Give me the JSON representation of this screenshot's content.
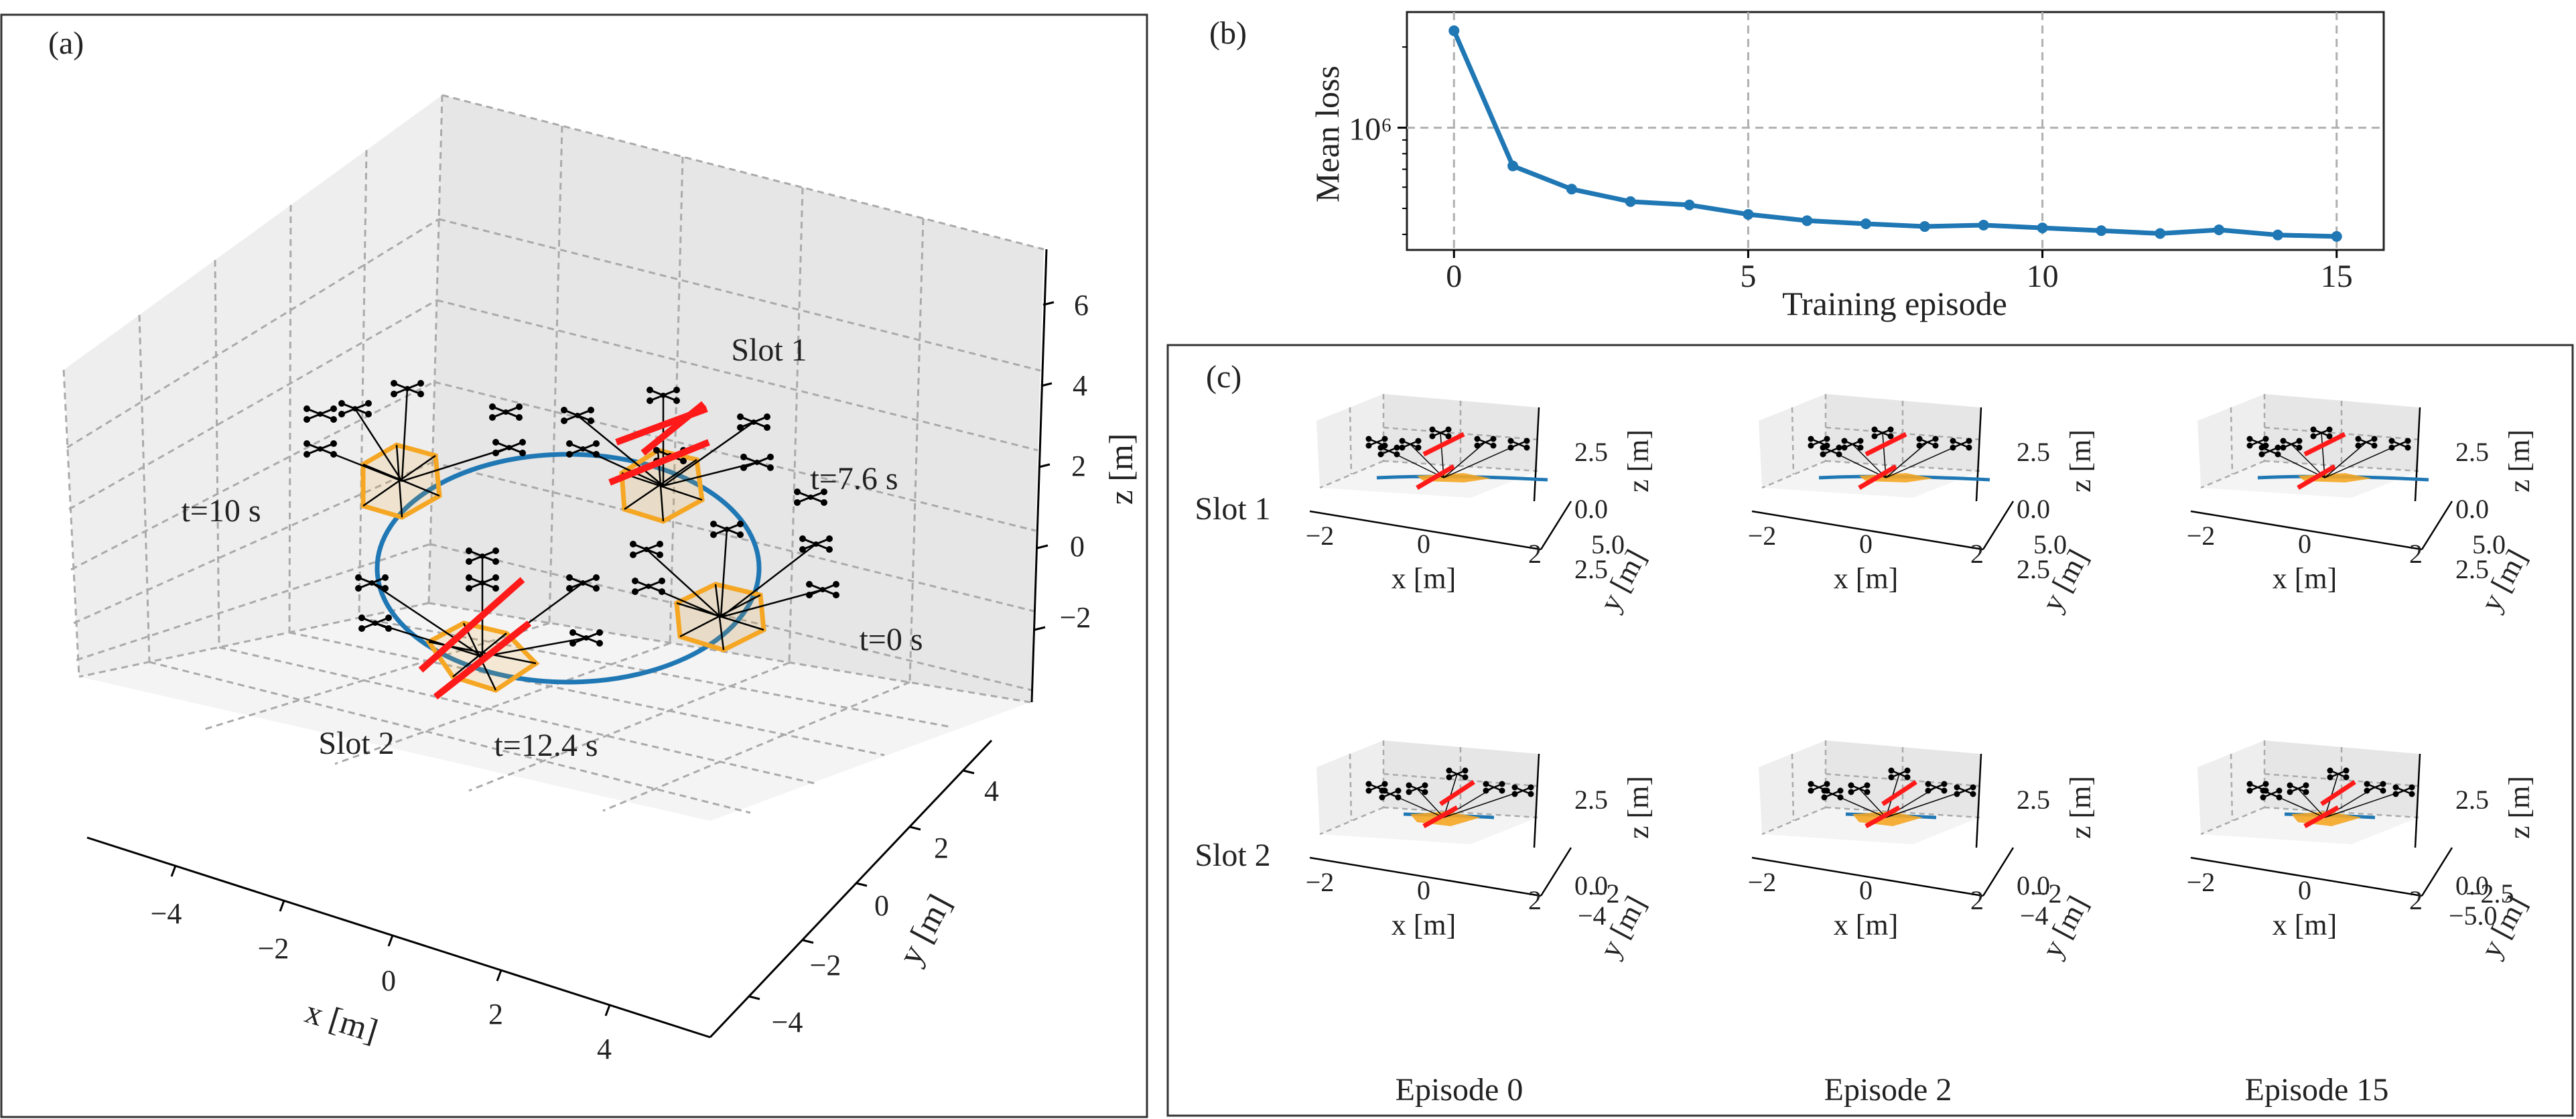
{
  "colors": {
    "trajectory": "#1f77b4",
    "payload": "#f5a623",
    "cut": "#ff1a1a",
    "quad": "#000000",
    "pane": "#f2f2f2",
    "grid": "#aaaaaa"
  },
  "panel_a": {
    "label": "(a)",
    "annotations": {
      "slot1": "Slot 1",
      "slot2": "Slot 2",
      "t0": "t=0 s",
      "t76": "t=7.6 s",
      "t10": "t=10 s",
      "t124": "t=12.4 s"
    },
    "xlabel": "x [m]",
    "ylabel": "y [m]",
    "zlabel": "z [m]",
    "xticks": [
      "−4",
      "−2",
      "0",
      "2",
      "4"
    ],
    "yticks": [
      "−4",
      "−2",
      "0",
      "2",
      "4"
    ],
    "zticks": [
      "−2",
      "0",
      "2",
      "4",
      "6"
    ]
  },
  "panel_c": {
    "label": "(c)",
    "rows": [
      "Slot 1",
      "Slot 2"
    ],
    "columns": [
      "Episode 0",
      "Episode 2",
      "Episode 15"
    ],
    "xlabel": "x [m]",
    "ylabel": "y [m]",
    "zlabel": "z [m]",
    "xticks": [
      "−2",
      "0",
      "2"
    ],
    "zticks": [
      "0.0",
      "2.5"
    ],
    "yticks_row1": [
      "2.5",
      "5.0"
    ],
    "yticks_row2": [
      [
        "−4",
        "−2"
      ],
      [
        "−4",
        "−2"
      ],
      [
        "−5.0",
        "−2.5"
      ]
    ]
  },
  "chart_data": [
    {
      "panel": "(b)",
      "type": "line",
      "title": "",
      "xlabel": "Training episode",
      "ylabel": "Mean loss",
      "yscale": "log",
      "x": [
        0,
        1,
        2,
        3,
        4,
        5,
        6,
        7,
        8,
        9,
        10,
        11,
        12,
        13,
        14,
        15
      ],
      "series": [
        {
          "name": "Mean loss",
          "values": [
            2300000,
            720000,
            590000,
            530000,
            515000,
            475000,
            450000,
            438000,
            428000,
            433000,
            423000,
            413000,
            403000,
            416000,
            398000,
            393000
          ]
        }
      ],
      "xticks": [
        "0",
        "5",
        "10",
        "15"
      ],
      "yticks": [
        "10⁶"
      ],
      "ylim": [
        350000,
        2700000
      ],
      "xlim": [
        -0.8,
        15.8
      ],
      "grid": true
    }
  ]
}
